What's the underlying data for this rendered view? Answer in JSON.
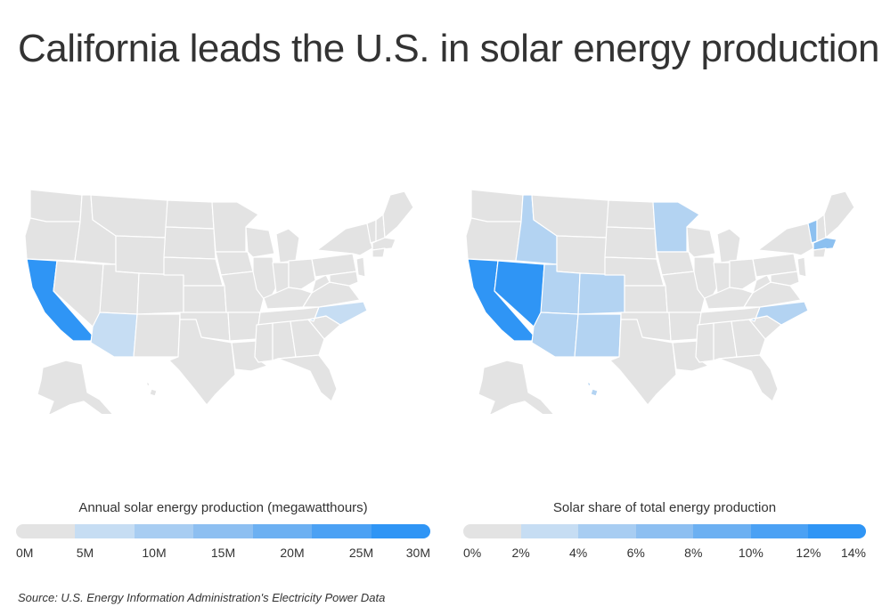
{
  "title": "California leads the U.S. in solar energy production",
  "source": "Source:  U.S. Energy Information Administration's Electricity Power Data",
  "colors": {
    "base": "#e3e3e3",
    "light": "#b3d3f2",
    "mid": "#8cc0f0",
    "strong": "#2f95f5",
    "border": "#ffffff"
  },
  "maps": [
    {
      "id": "production",
      "legend_title": "Annual solar energy production (megawatthours)",
      "legend_labels": [
        "0M",
        "5M",
        "10M",
        "15M",
        "20M",
        "25M",
        "30M"
      ],
      "legend_colors": [
        "#e3e3e3",
        "#c6ddf3",
        "#a8cdf2",
        "#8dbff1",
        "#6cb0f2",
        "#4ba1f4",
        "#2f95f5"
      ],
      "highlighted_states": [
        {
          "state": "California",
          "color": "#2f95f5"
        },
        {
          "state": "Arizona",
          "color": "#c6ddf3"
        },
        {
          "state": "North Carolina",
          "color": "#c6ddf3"
        }
      ]
    },
    {
      "id": "share",
      "legend_title": "Solar share of total energy production",
      "legend_labels": [
        "0%",
        "2%",
        "4%",
        "6%",
        "8%",
        "10%",
        "12%",
        "14%"
      ],
      "legend_colors": [
        "#e3e3e3",
        "#c6ddf3",
        "#a8cdf2",
        "#8dbff1",
        "#6cb0f2",
        "#4ba1f4",
        "#2f95f5"
      ],
      "highlighted_states": [
        {
          "state": "California",
          "color": "#2f95f5"
        },
        {
          "state": "Nevada",
          "color": "#2f95f5"
        },
        {
          "state": "Arizona",
          "color": "#b3d3f2"
        },
        {
          "state": "Utah",
          "color": "#b3d3f2"
        },
        {
          "state": "New Mexico",
          "color": "#b3d3f2"
        },
        {
          "state": "Colorado",
          "color": "#b3d3f2"
        },
        {
          "state": "Idaho",
          "color": "#b3d3f2"
        },
        {
          "state": "Minnesota",
          "color": "#b3d3f2"
        },
        {
          "state": "North Carolina",
          "color": "#b3d3f2"
        },
        {
          "state": "Vermont",
          "color": "#8cc0f0"
        },
        {
          "state": "Massachusetts",
          "color": "#8cc0f0"
        },
        {
          "state": "Hawaii",
          "color": "#b3d3f2"
        }
      ]
    }
  ]
}
